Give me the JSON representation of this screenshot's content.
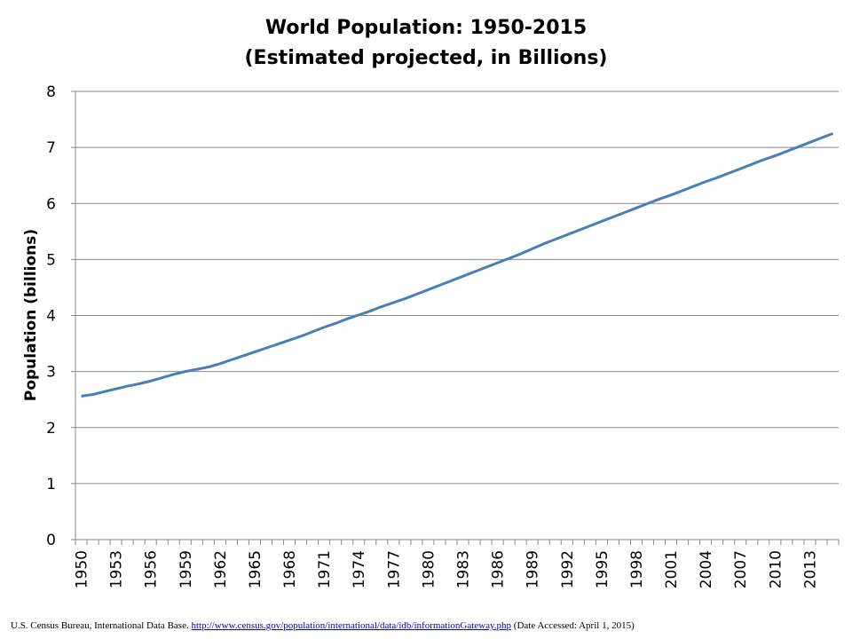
{
  "chart_data": {
    "type": "line",
    "title": "World Population: 1950-2015",
    "subtitle": "(Estimated projected, in Billions)",
    "xlabel": "",
    "ylabel": "Population (billions)",
    "ylim": [
      0,
      8
    ],
    "yticks": [
      0,
      1,
      2,
      3,
      4,
      5,
      6,
      7,
      8
    ],
    "xticks": [
      "1950",
      "1953",
      "1956",
      "1959",
      "1962",
      "1965",
      "1968",
      "1971",
      "1974",
      "1977",
      "1980",
      "1983",
      "1986",
      "1989",
      "1992",
      "1995",
      "1998",
      "2001",
      "2004",
      "2007",
      "2010",
      "2013"
    ],
    "grid": true,
    "legend": "none",
    "color": "#4a7ebb",
    "x": [
      1950,
      1951,
      1952,
      1953,
      1954,
      1955,
      1956,
      1957,
      1958,
      1959,
      1960,
      1961,
      1962,
      1963,
      1964,
      1965,
      1966,
      1967,
      1968,
      1969,
      1970,
      1971,
      1972,
      1973,
      1974,
      1975,
      1976,
      1977,
      1978,
      1979,
      1980,
      1981,
      1982,
      1983,
      1984,
      1985,
      1986,
      1987,
      1988,
      1989,
      1990,
      1991,
      1992,
      1993,
      1994,
      1995,
      1996,
      1997,
      1998,
      1999,
      2000,
      2001,
      2002,
      2003,
      2004,
      2005,
      2006,
      2007,
      2008,
      2009,
      2010,
      2011,
      2012,
      2013,
      2014,
      2015
    ],
    "series": [
      {
        "values": [
          2.56,
          2.59,
          2.64,
          2.69,
          2.74,
          2.78,
          2.83,
          2.89,
          2.95,
          3.0,
          3.04,
          3.08,
          3.14,
          3.21,
          3.28,
          3.35,
          3.42,
          3.49,
          3.56,
          3.63,
          3.71,
          3.79,
          3.86,
          3.94,
          4.01,
          4.08,
          4.16,
          4.23,
          4.3,
          4.38,
          4.46,
          4.54,
          4.62,
          4.7,
          4.78,
          4.86,
          4.94,
          5.02,
          5.1,
          5.19,
          5.28,
          5.36,
          5.44,
          5.52,
          5.6,
          5.68,
          5.76,
          5.84,
          5.92,
          6.0,
          6.08,
          6.15,
          6.23,
          6.31,
          6.39,
          6.46,
          6.54,
          6.62,
          6.7,
          6.78,
          6.85,
          6.93,
          7.01,
          7.09,
          7.17,
          7.25
        ]
      }
    ]
  },
  "source": {
    "prefix": "U.S. Census Bureau, International Data Base. ",
    "link": "http://www.census.gov/population/international/data/idb/informationGateway.php",
    "suffix": " (Date Accessed: April  1, 2015)"
  }
}
